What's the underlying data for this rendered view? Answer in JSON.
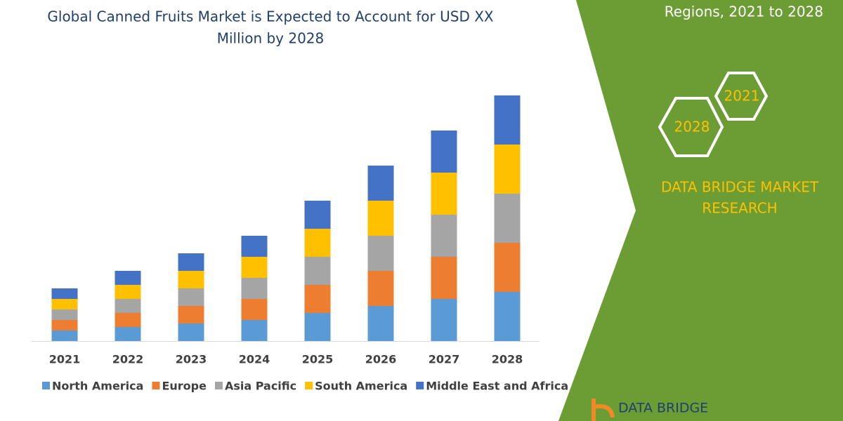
{
  "chart_data": {
    "type": "bar",
    "stacked": true,
    "title": [
      "Global Canned Fruits Market is Expected to Account for USD XX",
      "Million by 2028"
    ],
    "categories": [
      "2021",
      "2022",
      "2023",
      "2024",
      "2025",
      "2026",
      "2027",
      "2028"
    ],
    "series": [
      {
        "name": "North America",
        "color": "#5b9bd5",
        "values": [
          3,
          4,
          5,
          6,
          8,
          10,
          12,
          14
        ]
      },
      {
        "name": "Europe",
        "color": "#ed7d31",
        "values": [
          3,
          4,
          5,
          6,
          8,
          10,
          12,
          14
        ]
      },
      {
        "name": "Asia Pacific",
        "color": "#a5a5a5",
        "values": [
          3,
          4,
          5,
          6,
          8,
          10,
          12,
          14
        ]
      },
      {
        "name": "South America",
        "color": "#ffc000",
        "values": [
          3,
          4,
          5,
          6,
          8,
          10,
          12,
          14
        ]
      },
      {
        "name": "Middle East and Africa",
        "color": "#4472c4",
        "values": [
          3,
          4,
          5,
          6,
          8,
          10,
          12,
          14
        ]
      }
    ],
    "ylim": [
      0,
      70
    ],
    "legend": "bottom"
  },
  "side_panel": {
    "subtitle": "Regions, 2021 to 2028",
    "hexagons": [
      "2021",
      "2028"
    ],
    "brand": [
      "DATA BRIDGE MARKET",
      "RESEARCH"
    ],
    "logo": "DATA BRIDGE"
  }
}
